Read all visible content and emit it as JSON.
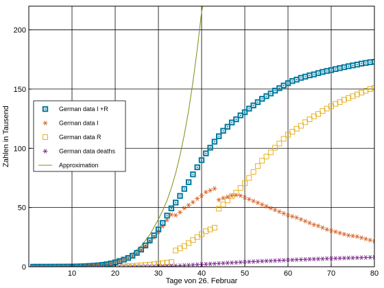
{
  "chart_data": {
    "type": "scatter",
    "title": "",
    "xlabel": "Tage von 26. Februar",
    "ylabel": "Zahlen in Tausend",
    "xlim": [
      0,
      80
    ],
    "ylim": [
      0,
      220
    ],
    "xticks": [
      10,
      20,
      30,
      40,
      50,
      60,
      70,
      80
    ],
    "yticks": [
      0,
      50,
      100,
      150,
      200
    ],
    "grid": true,
    "legend_position": "middle-left",
    "series": [
      {
        "name": "German data I +R",
        "marker": "square-dot",
        "color": "#00789e",
        "x": [
          1,
          2,
          3,
          4,
          5,
          6,
          7,
          8,
          9,
          10,
          11,
          12,
          13,
          14,
          15,
          16,
          17,
          18,
          19,
          20,
          21,
          22,
          23,
          24,
          25,
          26,
          27,
          28,
          29,
          30,
          31,
          32,
          33,
          34,
          35,
          36,
          37,
          38,
          39,
          40,
          41,
          42,
          43,
          44,
          45,
          46,
          47,
          48,
          49,
          50,
          51,
          52,
          53,
          54,
          55,
          56,
          57,
          58,
          59,
          60,
          61,
          62,
          63,
          64,
          65,
          66,
          67,
          68,
          69,
          70,
          71,
          72,
          73,
          74,
          75,
          76,
          77,
          78,
          79,
          80
        ],
        "values": [
          0.02,
          0.03,
          0.04,
          0.05,
          0.06,
          0.08,
          0.1,
          0.12,
          0.15,
          0.2,
          0.25,
          0.35,
          0.5,
          0.7,
          0.9,
          1.2,
          1.6,
          2.1,
          2.8,
          3.7,
          4.8,
          6.0,
          7.4,
          9.3,
          11.7,
          14.5,
          18.0,
          22.3,
          26.5,
          31.5,
          37.0,
          43.2,
          49.3,
          54.2,
          59.8,
          65.7,
          71.4,
          78.0,
          84.0,
          90.0,
          95.7,
          100.5,
          105.6,
          110.2,
          114.8,
          118.2,
          121.8,
          124.5,
          127.8,
          130.5,
          133.5,
          136.2,
          139.0,
          141.8,
          144.0,
          146.3,
          148.7,
          150.8,
          153.0,
          155.0,
          156.8,
          158.0,
          159.5,
          160.5,
          161.6,
          162.4,
          163.5,
          164.5,
          165.3,
          166.0,
          166.9,
          167.7,
          168.5,
          169.3,
          170.0,
          170.7,
          171.5,
          172.1,
          172.7,
          173.0
        ]
      },
      {
        "name": "German data I",
        "marker": "asterisk",
        "color": "#d86427",
        "x": [
          1,
          2,
          3,
          4,
          5,
          6,
          7,
          8,
          9,
          10,
          11,
          12,
          13,
          14,
          15,
          16,
          17,
          18,
          19,
          20,
          21,
          22,
          23,
          24,
          25,
          26,
          27,
          28,
          29,
          30,
          31,
          32,
          33,
          34,
          35,
          36,
          37,
          38,
          39,
          40,
          41,
          42,
          43,
          44,
          45,
          46,
          47,
          48,
          49,
          50,
          51,
          52,
          53,
          54,
          55,
          56,
          57,
          58,
          59,
          60,
          61,
          62,
          63,
          64,
          65,
          66,
          67,
          68,
          69,
          70,
          71,
          72,
          73,
          74,
          75,
          76,
          77,
          78,
          79,
          80
        ],
        "values": [
          0.02,
          0.03,
          0.04,
          0.05,
          0.06,
          0.08,
          0.1,
          0.12,
          0.15,
          0.2,
          0.25,
          0.35,
          0.5,
          0.7,
          0.9,
          1.2,
          1.6,
          2.1,
          2.7,
          3.6,
          4.6,
          5.8,
          7.2,
          9.0,
          11.2,
          13.8,
          17.0,
          21.0,
          24.8,
          29.3,
          34.2,
          39.5,
          44.0,
          43.5,
          46.0,
          49.5,
          52.0,
          54.5,
          57.5,
          60.0,
          63.0,
          64.5,
          66.0,
          56.5,
          58.0,
          59.0,
          60.0,
          60.5,
          60.0,
          58.5,
          57.0,
          55.5,
          54.0,
          52.5,
          51.0,
          49.5,
          48.0,
          46.5,
          45.0,
          43.5,
          42.5,
          41.5,
          40.0,
          38.5,
          37.0,
          35.5,
          34.5,
          33.0,
          31.5,
          30.5,
          29.5,
          28.5,
          27.5,
          26.5,
          26.0,
          25.5,
          24.5,
          23.5,
          22.5,
          21.5
        ]
      },
      {
        "name": "German data R",
        "marker": "square",
        "color": "#e6b022",
        "x": [
          1,
          2,
          3,
          4,
          5,
          6,
          7,
          8,
          9,
          10,
          11,
          12,
          13,
          14,
          15,
          16,
          17,
          18,
          19,
          20,
          21,
          22,
          23,
          24,
          25,
          26,
          27,
          28,
          29,
          30,
          31,
          32,
          33,
          34,
          35,
          36,
          37,
          38,
          39,
          40,
          41,
          42,
          43,
          44,
          45,
          46,
          47,
          48,
          49,
          50,
          51,
          52,
          53,
          54,
          55,
          56,
          57,
          58,
          59,
          60,
          61,
          62,
          63,
          64,
          65,
          66,
          67,
          68,
          69,
          70,
          71,
          72,
          73,
          74,
          75,
          76,
          77,
          78,
          79,
          80
        ],
        "values": [
          0,
          0,
          0,
          0,
          0,
          0,
          0,
          0,
          0,
          0,
          0,
          0,
          0,
          0,
          0,
          0,
          0.05,
          0.1,
          0.15,
          0.2,
          0.3,
          0.4,
          0.5,
          0.7,
          0.9,
          1.2,
          1.5,
          1.8,
          2.2,
          2.6,
          3.0,
          3.5,
          4.0,
          13.7,
          15.5,
          17.5,
          20.0,
          22.5,
          25.0,
          27.5,
          30.0,
          31.5,
          33.0,
          49.0,
          52.5,
          56.0,
          59.5,
          62.5,
          66.5,
          70.5,
          75.0,
          80.0,
          85.0,
          89.5,
          93.0,
          96.5,
          100.5,
          104.0,
          108.0,
          111.5,
          114.0,
          116.5,
          119.0,
          122.0,
          124.5,
          127.0,
          129.0,
          131.5,
          133.5,
          135.5,
          137.5,
          139.0,
          141.0,
          142.5,
          144.0,
          145.5,
          147.0,
          148.5,
          150.0,
          151.0
        ]
      },
      {
        "name": "German data deaths",
        "marker": "asterisk",
        "color": "#7e2f8e",
        "x": [
          1,
          2,
          3,
          4,
          5,
          6,
          7,
          8,
          9,
          10,
          11,
          12,
          13,
          14,
          15,
          16,
          17,
          18,
          19,
          20,
          21,
          22,
          23,
          24,
          25,
          26,
          27,
          28,
          29,
          30,
          31,
          32,
          33,
          34,
          35,
          36,
          37,
          38,
          39,
          40,
          41,
          42,
          43,
          44,
          45,
          46,
          47,
          48,
          49,
          50,
          51,
          52,
          53,
          54,
          55,
          56,
          57,
          58,
          59,
          60,
          61,
          62,
          63,
          64,
          65,
          66,
          67,
          68,
          69,
          70,
          71,
          72,
          73,
          74,
          75,
          76,
          77,
          78,
          79,
          80
        ],
        "values": [
          0,
          0,
          0,
          0,
          0,
          0,
          0,
          0,
          0,
          0,
          0,
          0,
          0,
          0,
          0,
          0,
          0,
          0,
          0,
          0,
          0.01,
          0.02,
          0.03,
          0.04,
          0.06,
          0.08,
          0.1,
          0.15,
          0.2,
          0.25,
          0.35,
          0.45,
          0.6,
          0.75,
          0.9,
          1.1,
          1.3,
          1.6,
          1.8,
          2.0,
          2.2,
          2.4,
          2.6,
          2.8,
          3.0,
          3.2,
          3.4,
          3.6,
          3.8,
          4.0,
          4.2,
          4.4,
          4.5,
          4.7,
          4.9,
          5.0,
          5.2,
          5.4,
          5.5,
          5.7,
          5.8,
          6.0,
          6.1,
          6.2,
          6.4,
          6.5,
          6.6,
          6.7,
          6.9,
          7.0,
          7.1,
          7.2,
          7.3,
          7.4,
          7.5,
          7.6,
          7.7,
          7.8,
          7.9,
          8.0
        ]
      },
      {
        "name": "Approximation",
        "marker": "line",
        "color": "#7d8c12",
        "x": [
          0,
          2,
          4,
          6,
          8,
          10,
          12,
          14,
          16,
          18,
          20,
          22,
          24,
          26,
          28,
          30,
          31,
          32,
          33,
          34,
          35,
          36,
          37,
          38,
          39,
          40,
          40.5
        ],
        "values": [
          0.05,
          0.08,
          0.13,
          0.2,
          0.32,
          0.5,
          0.78,
          1.2,
          1.9,
          3.0,
          4.6,
          7.2,
          11.2,
          17.5,
          27.0,
          40.0,
          47.5,
          56.0,
          66.5,
          79.0,
          94.0,
          111.5,
          132.0,
          156.0,
          184.0,
          215.0,
          225.0
        ]
      }
    ]
  }
}
